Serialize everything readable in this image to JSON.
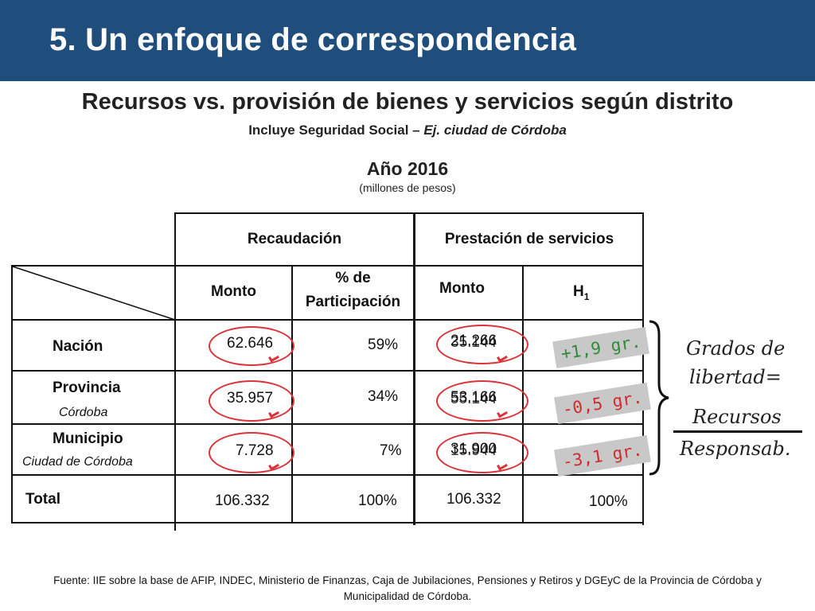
{
  "header": {
    "title": "5. Un enfoque de correspondencia",
    "bg": "#1f4e7d"
  },
  "subtitle": "Recursos vs. provisión de bienes y servicios según distrito",
  "subnote": {
    "lead": "Incluye Seguridad Social – ",
    "italic": "Ej. ciudad de Córdoba"
  },
  "year": "Año 2016",
  "units": "(millones de pesos)",
  "table": {
    "group_recaudacion": "Recaudación",
    "group_prestacion": "Prestación de servicios",
    "col_monto": "Monto",
    "col_pct_1": "% de",
    "col_pct_2": "Participación",
    "col_monto2": "Monto",
    "col_h": "H",
    "col_h_sub": "1",
    "rows": [
      {
        "name": "Nación",
        "sub": "",
        "rec_monto": "62.646",
        "rec_pct": "59%",
        "pres_monto_a": "21.266",
        "pres_monto_b": "35.144"
      },
      {
        "name": "Provincia",
        "sub": "Córdoba",
        "rec_monto": "35.957",
        "rec_pct": "34%",
        "pres_monto_a": "53.166",
        "pres_monto_b": "55.144"
      },
      {
        "name": "Municipio",
        "sub": "Ciudad de Córdoba",
        "rec_monto": "7.728",
        "rec_pct": "7%",
        "pres_monto_a": "31.900",
        "pres_monto_b": "15.944"
      }
    ],
    "total": {
      "name": "Total",
      "rec_monto": "106.332",
      "rec_pct": "100%",
      "pres_monto": "106.332",
      "pres_pct": "100%"
    }
  },
  "tags": [
    {
      "text": "+1,9 gr.",
      "color": "#2e8b3a"
    },
    {
      "text": "-0,5 gr.",
      "color": "#d02a2a"
    },
    {
      "text": "-3,1 gr.",
      "color": "#d02a2a"
    }
  ],
  "annotation": {
    "line1": "Grados de",
    "line2": "libertad=",
    "numerator": "Recursos",
    "denominator": "Responsab."
  },
  "footer": "Fuente: IIE sobre la base de AFIP, INDEC, Ministerio de Finanzas, Caja de Jubilaciones, Pensiones y Retiros y DGEyC de la Provincia de Córdoba y Municipalidad de Córdoba."
}
